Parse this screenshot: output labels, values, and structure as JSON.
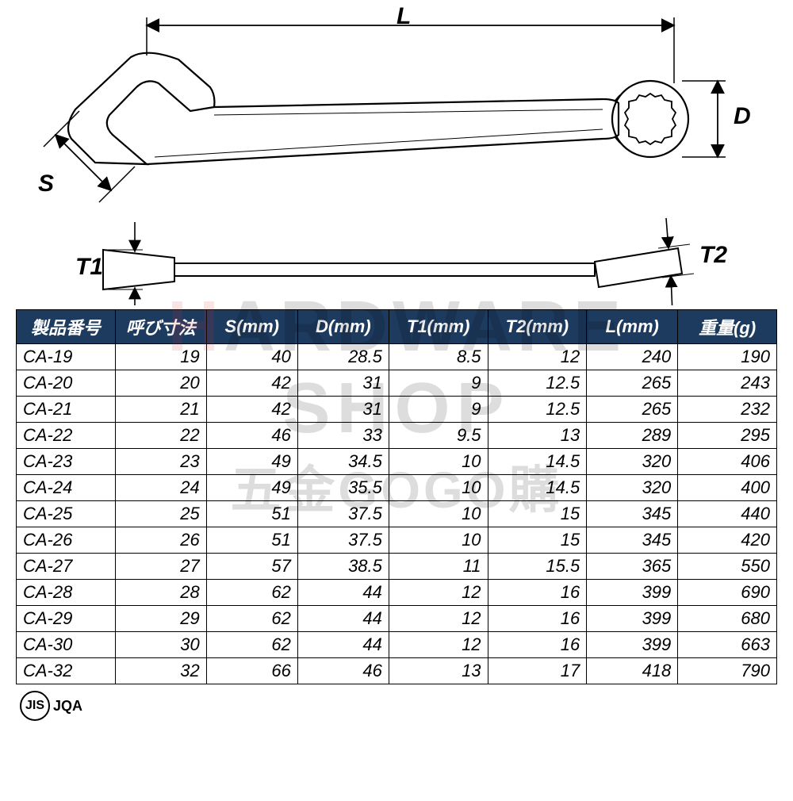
{
  "diagram": {
    "labels": {
      "L": "L",
      "D": "D",
      "S": "S",
      "T1": "T1",
      "T2": "T2"
    },
    "stroke_color": "#000000",
    "stroke_width": 2
  },
  "watermark": {
    "line1_h": "H",
    "line1_rest": "ARDWARE",
    "line2": "SHOP",
    "line3": "五金GOGO購",
    "accent_color": "#d32f2f",
    "text_color": "#000000",
    "opacity": 0.13
  },
  "table": {
    "header_bg": "#1d3a5f",
    "header_fg": "#ffffff",
    "border_color": "#000000",
    "columns": [
      "製品番号",
      "呼び寸法",
      "S(mm)",
      "D(mm)",
      "T1(mm)",
      "T2(mm)",
      "L(mm)",
      "重量(g)"
    ],
    "col_widths_pct": [
      13,
      12,
      12,
      12,
      13,
      13,
      12,
      13
    ],
    "rows": [
      [
        "CA-19",
        "19",
        "40",
        "28.5",
        "8.5",
        "12",
        "240",
        "190"
      ],
      [
        "CA-20",
        "20",
        "42",
        "31",
        "9",
        "12.5",
        "265",
        "243"
      ],
      [
        "CA-21",
        "21",
        "42",
        "31",
        "9",
        "12.5",
        "265",
        "232"
      ],
      [
        "CA-22",
        "22",
        "46",
        "33",
        "9.5",
        "13",
        "289",
        "295"
      ],
      [
        "CA-23",
        "23",
        "49",
        "34.5",
        "10",
        "14.5",
        "320",
        "406"
      ],
      [
        "CA-24",
        "24",
        "49",
        "35.5",
        "10",
        "14.5",
        "320",
        "400"
      ],
      [
        "CA-25",
        "25",
        "51",
        "37.5",
        "10",
        "15",
        "345",
        "440"
      ],
      [
        "CA-26",
        "26",
        "51",
        "37.5",
        "10",
        "15",
        "345",
        "420"
      ],
      [
        "CA-27",
        "27",
        "57",
        "38.5",
        "11",
        "15.5",
        "365",
        "550"
      ],
      [
        "CA-28",
        "28",
        "62",
        "44",
        "12",
        "16",
        "399",
        "690"
      ],
      [
        "CA-29",
        "29",
        "62",
        "44",
        "12",
        "16",
        "399",
        "680"
      ],
      [
        "CA-30",
        "30",
        "62",
        "44",
        "12",
        "16",
        "399",
        "663"
      ],
      [
        "CA-32",
        "32",
        "66",
        "46",
        "13",
        "17",
        "418",
        "790"
      ]
    ]
  },
  "badge": {
    "jis": "JIS",
    "jqa": "JQA"
  }
}
